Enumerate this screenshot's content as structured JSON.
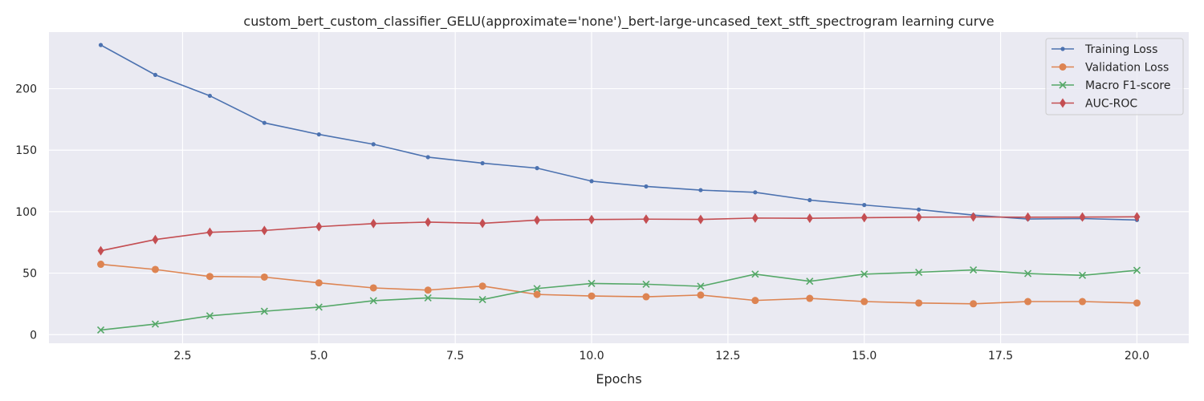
{
  "chart_data": {
    "type": "line",
    "title": "custom_bert_custom_classifier_GELU(approximate='none')_bert-large-uncased_text_stft_spectrogram learning curve",
    "xlabel": "Epochs",
    "ylabel": "",
    "xlim": [
      0.05,
      20.95
    ],
    "ylim": [
      -7,
      246
    ],
    "xticks": [
      2.5,
      5.0,
      7.5,
      10.0,
      12.5,
      15.0,
      17.5,
      20.0
    ],
    "xtick_labels": [
      "2.5",
      "5.0",
      "7.5",
      "10.0",
      "12.5",
      "15.0",
      "17.5",
      "20.0"
    ],
    "yticks": [
      0,
      50,
      100,
      150,
      200
    ],
    "ytick_labels": [
      "0",
      "50",
      "100",
      "150",
      "200"
    ],
    "grid": true,
    "legend_position": "top-right",
    "x": [
      1,
      2,
      3,
      4,
      5,
      6,
      7,
      8,
      9,
      10,
      11,
      12,
      13,
      14,
      15,
      16,
      17,
      18,
      19,
      20
    ],
    "series": [
      {
        "name": "Training Loss",
        "color": "#4c72b0",
        "marker": "point",
        "values": [
          235.5,
          211.2,
          194.2,
          172.2,
          162.8,
          154.8,
          144.3,
          139.4,
          135.4,
          124.8,
          120.5,
          117.5,
          115.7,
          109.4,
          105.4,
          101.7,
          97.2,
          94.0,
          94.4,
          93.2
        ]
      },
      {
        "name": "Validation Loss",
        "color": "#dd8452",
        "marker": "circle",
        "values": [
          57.2,
          53.0,
          47.3,
          46.8,
          42.1,
          38.0,
          36.2,
          39.5,
          32.7,
          31.4,
          30.8,
          32.2,
          27.8,
          29.5,
          26.9,
          25.7,
          25.1,
          26.9,
          26.9,
          25.7
        ]
      },
      {
        "name": "Macro F1-score",
        "color": "#55a868",
        "marker": "x",
        "values": [
          3.8,
          8.6,
          15.3,
          19.0,
          22.4,
          27.6,
          29.9,
          28.5,
          37.5,
          41.6,
          41.0,
          39.3,
          49.2,
          43.4,
          49.2,
          50.7,
          52.6,
          49.7,
          48.2,
          52.3
        ]
      },
      {
        "name": "AUC-ROC",
        "color": "#c44e52",
        "marker": "diamond",
        "values": [
          68.2,
          77.3,
          83.2,
          84.7,
          87.8,
          90.3,
          91.5,
          90.5,
          93.1,
          93.6,
          93.9,
          93.7,
          94.8,
          94.6,
          95.1,
          95.5,
          95.7,
          95.5,
          95.6,
          95.8
        ]
      }
    ]
  }
}
